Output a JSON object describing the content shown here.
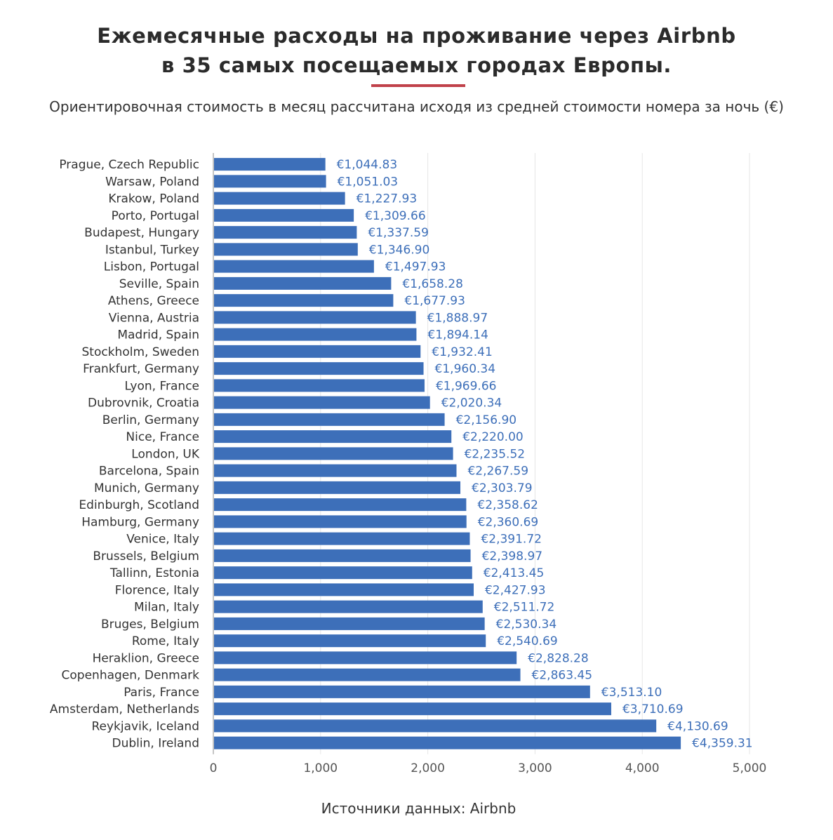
{
  "title_lines": [
    "Ежемесячные расходы на проживание через Airbnb",
    "в 35 самых посещаемых городах Европы."
  ],
  "subtitle": "Ориентировочная стоимость в месяц рассчитана исходя из средней стоимости номера за ночь (€)",
  "source": "Источники данных: Airbnb",
  "colors": {
    "bar": "#3d6fb9",
    "label": "#3d6fb9",
    "grid": "#e6e6e6",
    "axis": "#555555",
    "accent": "#c0414a"
  },
  "chart_data": {
    "type": "bar",
    "orientation": "horizontal",
    "xlim": [
      0,
      5000
    ],
    "xticks": [
      0,
      1000,
      2000,
      3000,
      4000,
      5000
    ],
    "xtick_labels": [
      "0",
      "1,000",
      "2,000",
      "3,000",
      "4,000",
      "5,000"
    ],
    "categories": [
      "Prague, Czech Republic",
      "Warsaw, Poland",
      "Krakow, Poland",
      "Porto, Portugal",
      "Budapest, Hungary",
      "Istanbul, Turkey",
      "Lisbon, Portugal",
      "Seville, Spain",
      "Athens, Greece",
      "Vienna, Austria",
      "Madrid, Spain",
      "Stockholm, Sweden",
      "Frankfurt, Germany",
      "Lyon, France",
      "Dubrovnik, Croatia",
      "Berlin, Germany",
      "Nice, France",
      "London, UK",
      "Barcelona, Spain",
      "Munich, Germany",
      "Edinburgh, Scotland",
      "Hamburg, Germany",
      "Venice, Italy",
      "Brussels, Belgium",
      "Tallinn, Estonia",
      "Florence, Italy",
      "Milan, Italy",
      "Bruges, Belgium",
      "Rome, Italy",
      "Heraklion, Greece",
      "Copenhagen, Denmark",
      "Paris, France",
      "Amsterdam, Netherlands",
      "Reykjavik, Iceland",
      "Dublin, Ireland"
    ],
    "values": [
      1044.83,
      1051.03,
      1227.93,
      1309.66,
      1337.59,
      1346.9,
      1497.93,
      1658.28,
      1677.93,
      1888.97,
      1894.14,
      1932.41,
      1960.34,
      1969.66,
      2020.34,
      2156.9,
      2220.0,
      2235.52,
      2267.59,
      2303.79,
      2358.62,
      2360.69,
      2391.72,
      2398.97,
      2413.45,
      2427.93,
      2511.72,
      2530.34,
      2540.69,
      2828.28,
      2863.45,
      3513.1,
      3710.69,
      4130.69,
      4359.31
    ],
    "value_labels": [
      "€1,044.83",
      "€1,051.03",
      "€1,227.93",
      "€1,309.66",
      "€1,337.59",
      "€1,346.90",
      "€1,497.93",
      "€1,658.28",
      "€1,677.93",
      "€1,888.97",
      "€1,894.14",
      "€1,932.41",
      "€1,960.34",
      "€1,969.66",
      "€2,020.34",
      "€2,156.90",
      "€2,220.00",
      "€2,235.52",
      "€2,267.59",
      "€2,303.79",
      "€2,358.62",
      "€2,360.69",
      "€2,391.72",
      "€2,398.97",
      "€2,413.45",
      "€2,427.93",
      "€2,511.72",
      "€2,530.34",
      "€2,540.69",
      "€2,828.28",
      "€2,863.45",
      "€3,513.10",
      "€3,710.69",
      "€4,130.69",
      "€4,359.31"
    ]
  }
}
